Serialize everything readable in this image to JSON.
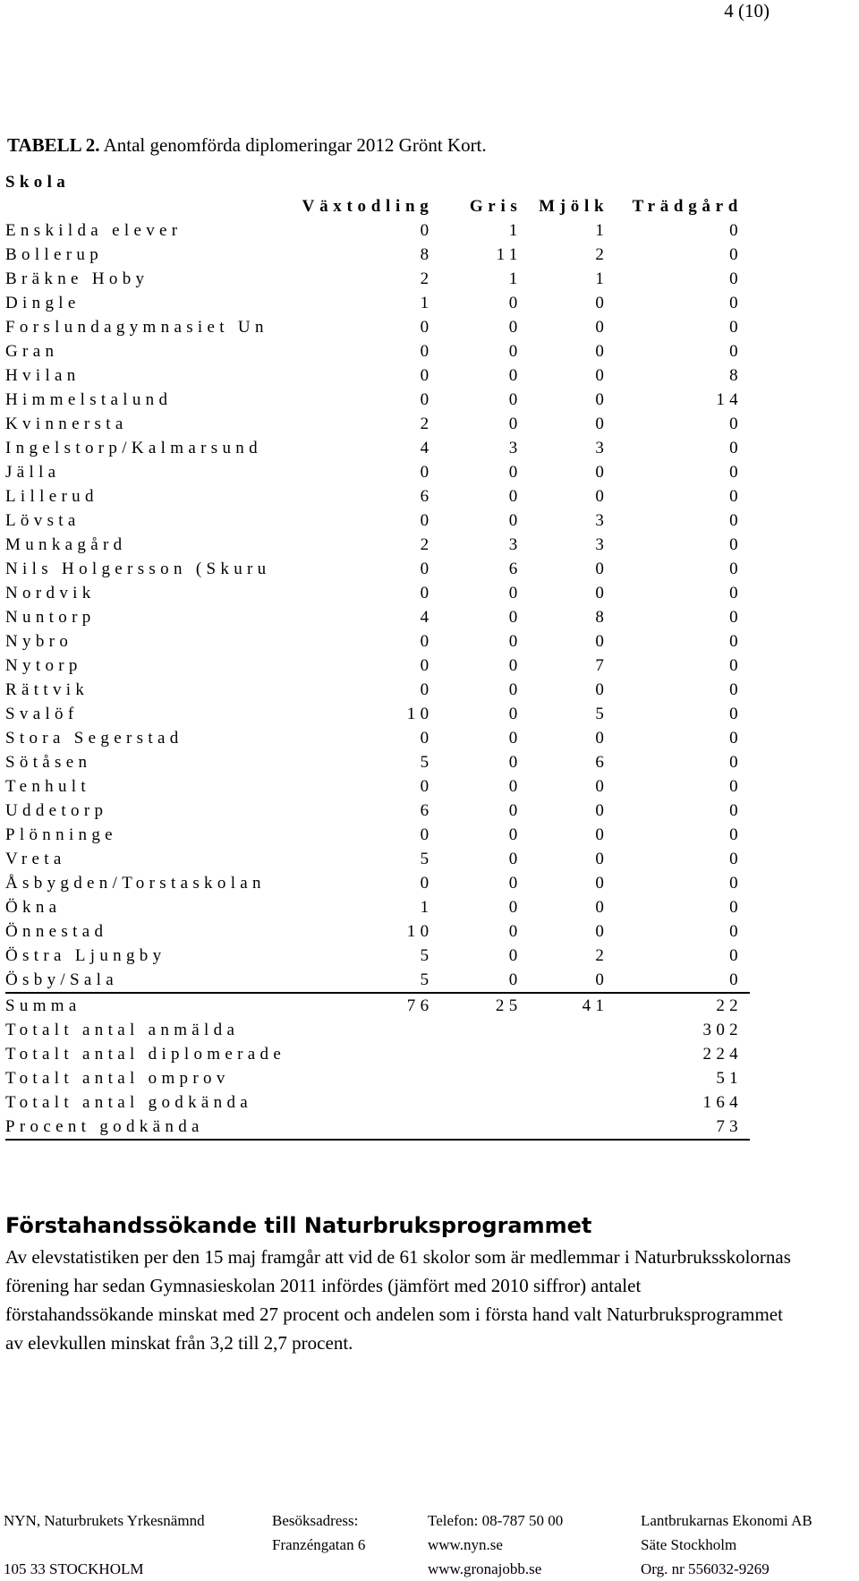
{
  "page_number": "4 (10)",
  "caption": {
    "label": "TABELL 2.",
    "text": " Antal genomförda diplomeringar 2012 Grönt Kort."
  },
  "table": {
    "school_header": "Skola",
    "columns": [
      "Växtodling",
      "Gris",
      "Mjölk",
      "Trädgård"
    ],
    "rows": [
      {
        "name": "Enskilda elever",
        "values": [
          "0",
          "1",
          "1",
          "0"
        ]
      },
      {
        "name": "Bollerup",
        "values": [
          "8",
          "11",
          "2",
          "0"
        ]
      },
      {
        "name": "Bräkne Hoby",
        "values": [
          "2",
          "1",
          "1",
          "0"
        ]
      },
      {
        "name": "Dingle",
        "values": [
          "1",
          "0",
          "0",
          "0"
        ]
      },
      {
        "name": "Forslundagymnasiet Un",
        "values": [
          "0",
          "0",
          "0",
          "0"
        ]
      },
      {
        "name": "Gran",
        "values": [
          "0",
          "0",
          "0",
          "0"
        ]
      },
      {
        "name": "Hvilan",
        "values": [
          "0",
          "0",
          "0",
          "8"
        ]
      },
      {
        "name": "Himmelstalund",
        "values": [
          "0",
          "0",
          "0",
          "14"
        ]
      },
      {
        "name": "Kvinnersta",
        "values": [
          "2",
          "0",
          "0",
          "0"
        ]
      },
      {
        "name": "Ingelstorp/Kalmarsund",
        "values": [
          "4",
          "3",
          "3",
          "0"
        ]
      },
      {
        "name": "Jälla",
        "values": [
          "0",
          "0",
          "0",
          "0"
        ]
      },
      {
        "name": "Lillerud",
        "values": [
          "6",
          "0",
          "0",
          "0"
        ]
      },
      {
        "name": "Lövsta",
        "values": [
          "0",
          "0",
          "3",
          "0"
        ]
      },
      {
        "name": "Munkagård",
        "values": [
          "2",
          "3",
          "3",
          "0"
        ]
      },
      {
        "name": "Nils Holgersson (Skuru",
        "values": [
          "0",
          "6",
          "0",
          "0"
        ]
      },
      {
        "name": "Nordvik",
        "values": [
          "0",
          "0",
          "0",
          "0"
        ]
      },
      {
        "name": "Nuntorp",
        "values": [
          "4",
          "0",
          "8",
          "0"
        ]
      },
      {
        "name": "Nybro",
        "values": [
          "0",
          "0",
          "0",
          "0"
        ]
      },
      {
        "name": "Nytorp",
        "values": [
          "0",
          "0",
          "7",
          "0"
        ]
      },
      {
        "name": "Rättvik",
        "values": [
          "0",
          "0",
          "0",
          "0"
        ]
      },
      {
        "name": "Svalöf",
        "values": [
          "10",
          "0",
          "5",
          "0"
        ]
      },
      {
        "name": "Stora Segerstad",
        "values": [
          "0",
          "0",
          "0",
          "0"
        ]
      },
      {
        "name": "Sötåsen",
        "values": [
          "5",
          "0",
          "6",
          "0"
        ]
      },
      {
        "name": "Tenhult",
        "values": [
          "0",
          "0",
          "0",
          "0"
        ]
      },
      {
        "name": "Uddetorp",
        "values": [
          "6",
          "0",
          "0",
          "0"
        ]
      },
      {
        "name": "Plönninge",
        "values": [
          "0",
          "0",
          "0",
          "0"
        ]
      },
      {
        "name": "Vreta",
        "values": [
          "5",
          "0",
          "0",
          "0"
        ]
      },
      {
        "name": "Åsbygden/Torstaskolan",
        "values": [
          "0",
          "0",
          "0",
          "0"
        ]
      },
      {
        "name": "Ökna",
        "values": [
          "1",
          "0",
          "0",
          "0"
        ]
      },
      {
        "name": "Önnestad",
        "values": [
          "10",
          "0",
          "0",
          "0"
        ]
      },
      {
        "name": "Östra Ljungby",
        "values": [
          "5",
          "0",
          "2",
          "0"
        ]
      },
      {
        "name": "Ösby/Sala",
        "values": [
          "5",
          "0",
          "0",
          "0"
        ]
      }
    ],
    "summa": {
      "name": "Summa",
      "values": [
        "76",
        "25",
        "41",
        "22"
      ]
    },
    "totals": [
      {
        "name": "Totalt antal anmälda",
        "value": "302"
      },
      {
        "name": "Totalt antal diplomerade",
        "value": "224"
      },
      {
        "name": "Totalt antal omprov",
        "value": "51"
      },
      {
        "name": "Totalt antal godkända",
        "value": "164"
      },
      {
        "name": "Procent godkända",
        "value": "73"
      }
    ]
  },
  "section": {
    "heading": "Förstahandssökande till Naturbruksprogrammet",
    "body": "Av elevstatistiken per den 15 maj framgår att vid de 61 skolor som är medlemmar i Naturbruksskolornas förening har sedan Gymnasieskolan 2011 infördes (jämfört med 2010 siffror) antalet förstahandssökande minskat med 27 procent och andelen som i första hand valt Naturbruksprogrammet av elevkullen minskat från 3,2 till 2,7 procent."
  },
  "footer": {
    "org_name": "NYN, Naturbrukets Yrkesnämnd",
    "org_address": "105 33  STOCKHOLM",
    "visit_label": "Besöksadress:",
    "visit_street": "Franzéngatan 6",
    "phone": "Telefon:  08-787 50 00",
    "web1": "www.nyn.se",
    "web2": "www.gronajobb.se",
    "company": "Lantbrukarnas Ekonomi AB",
    "seat": "Säte Stockholm",
    "org_nr": "Org. nr 556032-9269"
  }
}
